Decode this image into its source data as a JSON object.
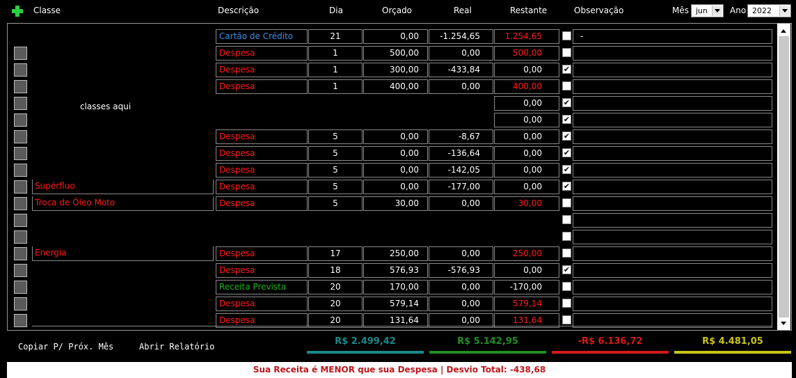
{
  "header": {
    "col_classe": "Classe",
    "col_descricao": "Descrição",
    "col_dia": "Dia",
    "col_orcado": "Orçado",
    "col_real": "Real",
    "col_restante": "Restante",
    "col_observacao": "Observação",
    "mes_label": "Mês",
    "mes_value": "jun",
    "ano_label": "Ano",
    "ano_value": "2022"
  },
  "placeholder_classes": "classes aqui",
  "rows": [
    {
      "has_button": false,
      "classe": "",
      "descricao": "Cartão de Crédito",
      "desc_color": "blue",
      "dia": "21",
      "orcado": "0,00",
      "real": "-1.254,65",
      "restante": "1.254,65",
      "rest_color": "red",
      "checked": false,
      "obs": "-"
    },
    {
      "has_button": true,
      "classe": "",
      "descricao": "Despesa",
      "desc_color": "red",
      "dia": "1",
      "orcado": "500,00",
      "real": "0,00",
      "restante": "500,00",
      "rest_color": "red",
      "checked": false,
      "obs": ""
    },
    {
      "has_button": true,
      "classe": "",
      "descricao": "Despesa",
      "desc_color": "red",
      "dia": "1",
      "orcado": "300,00",
      "real": "-433,84",
      "restante": "0,00",
      "rest_color": "white",
      "checked": true,
      "obs": ""
    },
    {
      "has_button": true,
      "classe": "",
      "descricao": "Despesa",
      "desc_color": "red",
      "dia": "1",
      "orcado": "400,00",
      "real": "0,00",
      "restante": "400,00",
      "rest_color": "red",
      "checked": false,
      "obs": ""
    },
    {
      "has_button": true,
      "classe": "",
      "descricao": "",
      "desc_color": "red",
      "dia": "",
      "orcado": "",
      "real": "",
      "restante": "0,00",
      "rest_color": "white",
      "checked": true,
      "obs": ""
    },
    {
      "has_button": true,
      "classe": "",
      "descricao": "",
      "desc_color": "red",
      "dia": "",
      "orcado": "",
      "real": "",
      "restante": "0,00",
      "rest_color": "white",
      "checked": true,
      "obs": ""
    },
    {
      "has_button": true,
      "classe": "",
      "descricao": "Despesa",
      "desc_color": "red",
      "dia": "5",
      "orcado": "0,00",
      "real": "-8,67",
      "restante": "0,00",
      "rest_color": "white",
      "checked": true,
      "obs": ""
    },
    {
      "has_button": true,
      "classe": "",
      "descricao": "Despesa",
      "desc_color": "red",
      "dia": "5",
      "orcado": "0,00",
      "real": "-136,64",
      "restante": "0,00",
      "rest_color": "white",
      "checked": true,
      "obs": ""
    },
    {
      "has_button": true,
      "classe": "",
      "descricao": "Despesa",
      "desc_color": "red",
      "dia": "5",
      "orcado": "0,00",
      "real": "-142,05",
      "restante": "0,00",
      "rest_color": "white",
      "checked": true,
      "obs": ""
    },
    {
      "has_button": true,
      "classe": "Supérfluo",
      "descricao": "Despesa",
      "desc_color": "red",
      "dia": "5",
      "orcado": "0,00",
      "real": "-177,00",
      "restante": "0,00",
      "rest_color": "white",
      "checked": true,
      "obs": ""
    },
    {
      "has_button": true,
      "classe": "Troca de Óleo Moto",
      "descricao": "Despesa",
      "desc_color": "red",
      "dia": "5",
      "orcado": "30,00",
      "real": "0,00",
      "restante": "30,00",
      "rest_color": "red",
      "checked": false,
      "obs": ""
    },
    {
      "has_button": true,
      "classe": "",
      "descricao": "",
      "desc_color": "red",
      "dia": "",
      "orcado": "",
      "real": "",
      "restante": "",
      "rest_color": "white",
      "checked": false,
      "obs": ""
    },
    {
      "has_button": true,
      "classe": "",
      "descricao": "",
      "desc_color": "red",
      "dia": "",
      "orcado": "",
      "real": "",
      "restante": "",
      "rest_color": "white",
      "checked": false,
      "obs": ""
    },
    {
      "has_button": true,
      "classe": "Energia",
      "descricao": "Despesa",
      "desc_color": "red",
      "dia": "17",
      "orcado": "250,00",
      "real": "0,00",
      "restante": "250,00",
      "rest_color": "red",
      "checked": false,
      "obs": ""
    },
    {
      "has_button": true,
      "classe": "",
      "descricao": "Despesa",
      "desc_color": "red",
      "dia": "18",
      "orcado": "576,93",
      "real": "-576,93",
      "restante": "0,00",
      "rest_color": "white",
      "checked": true,
      "obs": ""
    },
    {
      "has_button": true,
      "classe": "",
      "descricao": "Receita Prevista",
      "desc_color": "green",
      "dia": "20",
      "orcado": "170,00",
      "real": "0,00",
      "restante": "-170,00",
      "rest_color": "white",
      "checked": false,
      "obs": ""
    },
    {
      "has_button": true,
      "classe": "",
      "descricao": "Despesa",
      "desc_color": "red",
      "dia": "20",
      "orcado": "579,14",
      "real": "0,00",
      "restante": "579,14",
      "rest_color": "red",
      "checked": false,
      "obs": ""
    },
    {
      "has_button": true,
      "classe": "",
      "descricao": "Despesa",
      "desc_color": "red",
      "dia": "20",
      "orcado": "131,64",
      "real": "0,00",
      "restante": "131,64",
      "rest_color": "red",
      "checked": false,
      "obs": ""
    }
  ],
  "footer": {
    "copiar_label": "Copiar P/ Próx. Mês",
    "relatorio_label": "Abrir Relatório",
    "totals": [
      {
        "value": "R$ 2.499,42",
        "color": "#1a8a8a"
      },
      {
        "value": "R$ 5.142,95",
        "color": "#1f8f1f"
      },
      {
        "value": "-R$ 6.136,72",
        "color": "#d41a1a"
      },
      {
        "value": "R$ 4.481,05",
        "color": "#c9c41a"
      }
    ],
    "status": "Sua Receita é MENOR que sua Despesa | Desvio Total: -438,68"
  },
  "colors": {
    "red": "#ff1a1a",
    "blue": "#3a8ee6",
    "green": "#22b022",
    "white": "#ffffff"
  }
}
